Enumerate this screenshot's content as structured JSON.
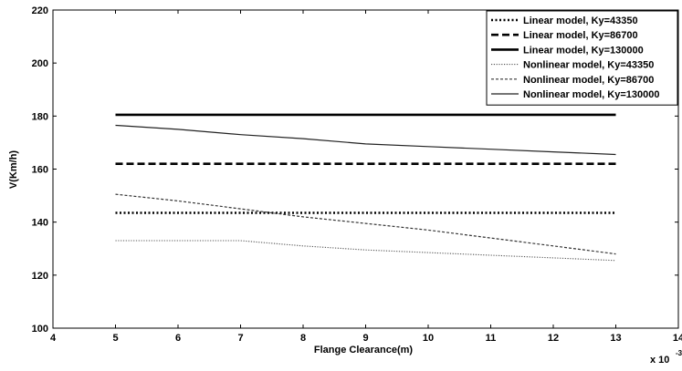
{
  "chart_data": {
    "type": "line",
    "title": "",
    "xlabel": "Flange Clearance(m)",
    "ylabel": "V(Km/h)",
    "x_scale_label": "x 10",
    "x_scale_exponent": "-3",
    "xlim": [
      4,
      14
    ],
    "ylim": [
      100,
      220
    ],
    "x_ticks": [
      4,
      5,
      6,
      7,
      8,
      9,
      10,
      11,
      12,
      13,
      14
    ],
    "y_ticks": [
      100,
      120,
      140,
      160,
      180,
      200,
      220
    ],
    "grid": false,
    "legend_position": "top-right",
    "series": [
      {
        "name": "Linear model, Ky=43350",
        "style": "dotted-thick",
        "color": "#000000",
        "x": [
          5,
          13
        ],
        "y": [
          143.5,
          143.5
        ]
      },
      {
        "name": "Linear model, Ky=86700",
        "style": "dashed-thick",
        "color": "#000000",
        "x": [
          5,
          13
        ],
        "y": [
          162,
          162
        ]
      },
      {
        "name": "Linear model, Ky=130000",
        "style": "solid-thick",
        "color": "#000000",
        "x": [
          5,
          13
        ],
        "y": [
          180.5,
          180.5
        ]
      },
      {
        "name": "Nonlinear model, Ky=43350",
        "style": "dotted-thin",
        "color": "#555555",
        "x": [
          5,
          6,
          7,
          8,
          9,
          10,
          11,
          12,
          13
        ],
        "y": [
          133,
          133,
          133,
          131,
          129.5,
          128.5,
          127.5,
          126.5,
          125.5
        ]
      },
      {
        "name": "Nonlinear model, Ky=86700",
        "style": "dashed-thin",
        "color": "#333333",
        "x": [
          5,
          6,
          7,
          8,
          9,
          10,
          11,
          12,
          13
        ],
        "y": [
          150.5,
          148,
          145,
          142,
          139.5,
          137,
          134,
          131,
          128
        ]
      },
      {
        "name": "Nonlinear model, Ky=130000",
        "style": "solid-thin",
        "color": "#222222",
        "x": [
          5,
          6,
          7,
          8,
          9,
          10,
          11,
          12,
          13
        ],
        "y": [
          176.5,
          175,
          173,
          171.5,
          169.5,
          168.5,
          167.5,
          166.5,
          165.5
        ]
      }
    ]
  }
}
